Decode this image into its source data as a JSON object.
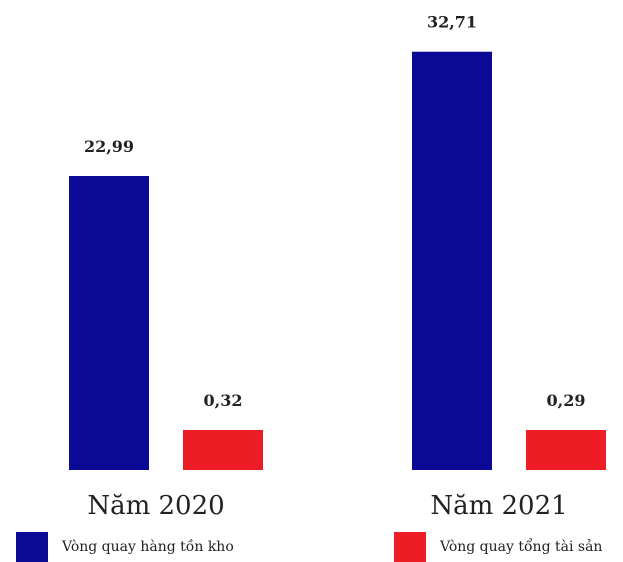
{
  "chart_data": {
    "type": "bar",
    "categories": [
      "Năm 2020",
      "Năm 2021"
    ],
    "series": [
      {
        "name": "Vòng quay hàng tồn kho",
        "values": [
          22.99,
          32.71
        ],
        "labels": [
          "22,99",
          "32,71"
        ],
        "color": "#0a0a96"
      },
      {
        "name": "Vòng quay tổng tài sản",
        "values": [
          0.32,
          0.29
        ],
        "labels": [
          "0,32",
          "0,29"
        ],
        "color": "#ee1c25"
      }
    ],
    "ylim": [
      0,
      33
    ],
    "grid": false,
    "legend_position": "bottom"
  }
}
